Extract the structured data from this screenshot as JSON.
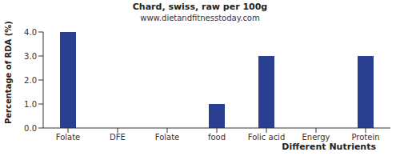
{
  "chart_data": {
    "type": "bar",
    "title": "Chard, swiss, raw per 100g",
    "subtitle": "www.dietandfitnesstoday.com",
    "x_label": "Different Nutrients",
    "y_label": "Percentage of RDA (%)",
    "categories": [
      "Folate",
      "DFE",
      "Folate",
      "food",
      "Folic acid",
      "Energy",
      "Protein"
    ],
    "values": [
      4,
      0,
      0,
      1,
      3,
      0,
      3
    ],
    "color": "#2a3f8f",
    "ylim": [
      0,
      4
    ],
    "yticks": [
      {
        "value": 0,
        "label": "0.0"
      },
      {
        "value": 1,
        "label": "1.0"
      },
      {
        "value": 2,
        "label": "2.0"
      },
      {
        "value": 3,
        "label": "3.0"
      },
      {
        "value": 4,
        "label": "4.0"
      }
    ],
    "grid": false
  }
}
